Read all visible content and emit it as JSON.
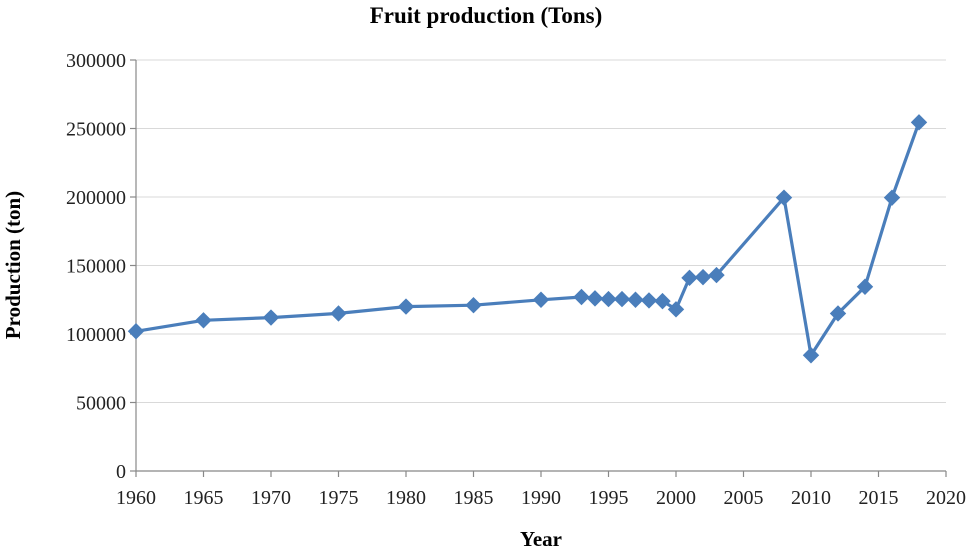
{
  "chart_data": {
    "type": "line",
    "title": "Fruit production (Tons)",
    "xlabel": "Year",
    "ylabel": "Production (ton)",
    "xlim": [
      1960,
      2020
    ],
    "ylim": [
      0,
      300000
    ],
    "x_ticks": [
      1960,
      1965,
      1970,
      1975,
      1980,
      1985,
      1990,
      1995,
      2000,
      2005,
      2010,
      2015,
      2020
    ],
    "y_ticks": [
      0,
      50000,
      100000,
      150000,
      200000,
      250000,
      300000
    ],
    "grid": true,
    "legend": "none",
    "color": "#4a7ebb",
    "series": [
      {
        "name": "Fruit production",
        "x": [
          1960,
          1965,
          1970,
          1975,
          1980,
          1985,
          1990,
          1993,
          1994,
          1995,
          1996,
          1997,
          1998,
          1999,
          2000,
          2001,
          2002,
          2003,
          2008,
          2010,
          2012,
          2014,
          2016,
          2018
        ],
        "y": [
          102000,
          110000,
          112000,
          115000,
          120000,
          121000,
          125000,
          127000,
          126000,
          125500,
          125500,
          125000,
          124500,
          124000,
          118000,
          141000,
          141500,
          143000,
          199500,
          84500,
          115000,
          134500,
          199500,
          254500
        ]
      }
    ]
  }
}
